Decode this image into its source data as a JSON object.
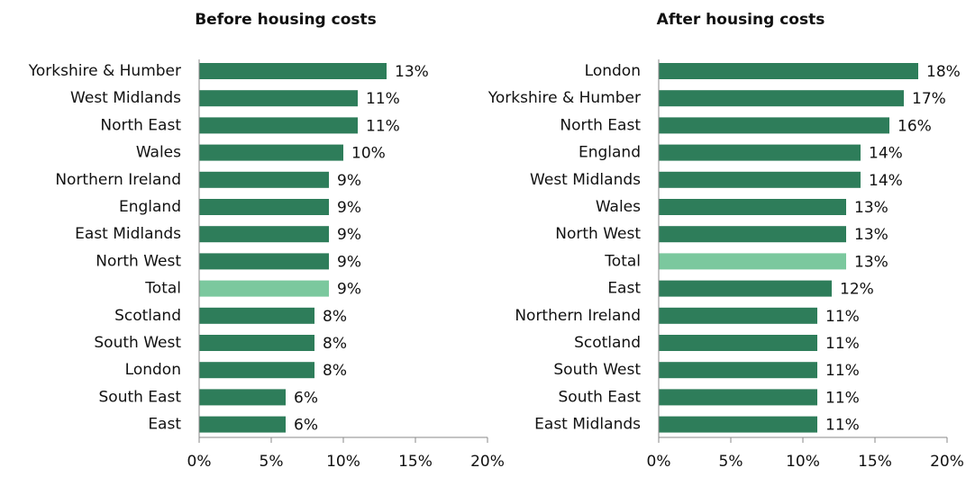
{
  "chart_data": [
    {
      "type": "bar",
      "orientation": "horizontal",
      "title": "Before housing costs",
      "categories": [
        "Yorkshire & Humber",
        "West Midlands",
        "North East",
        "Wales",
        "Northern Ireland",
        "England",
        "East Midlands",
        "North West",
        "Total",
        "Scotland",
        "South West",
        "London",
        "South East",
        "East"
      ],
      "values": [
        13,
        11,
        11,
        10,
        9,
        9,
        9,
        9,
        9,
        8,
        8,
        8,
        6,
        6
      ],
      "value_labels": [
        "13%",
        "11%",
        "11%",
        "10%",
        "9%",
        "9%",
        "9%",
        "9%",
        "9%",
        "8%",
        "8%",
        "8%",
        "6%",
        "6%"
      ],
      "colors": [
        "#2e7d5a",
        "#2e7d5a",
        "#2e7d5a",
        "#2e7d5a",
        "#2e7d5a",
        "#2e7d5a",
        "#2e7d5a",
        "#2e7d5a",
        "#7bc89e",
        "#2e7d5a",
        "#2e7d5a",
        "#2e7d5a",
        "#2e7d5a",
        "#2e7d5a"
      ],
      "xlim": [
        0,
        20
      ],
      "xticks": [
        {
          "value": 0,
          "label": "0%"
        },
        {
          "value": 5,
          "label": "5%"
        },
        {
          "value": 10,
          "label": "10%"
        },
        {
          "value": 15,
          "label": "15%"
        },
        {
          "value": 20,
          "label": "20%"
        }
      ]
    },
    {
      "type": "bar",
      "orientation": "horizontal",
      "title": "After housing costs",
      "categories": [
        "London",
        "Yorkshire & Humber",
        "North East",
        "England",
        "West Midlands",
        "Wales",
        "North West",
        "Total",
        "East",
        "Northern Ireland",
        "Scotland",
        "South West",
        "South East",
        "East Midlands"
      ],
      "values": [
        18,
        17,
        16,
        14,
        14,
        13,
        13,
        13,
        12,
        11,
        11,
        11,
        11,
        11
      ],
      "value_labels": [
        "18%",
        "17%",
        "16%",
        "14%",
        "14%",
        "13%",
        "13%",
        "13%",
        "12%",
        "11%",
        "11%",
        "11%",
        "11%",
        "11%"
      ],
      "colors": [
        "#2e7d5a",
        "#2e7d5a",
        "#2e7d5a",
        "#2e7d5a",
        "#2e7d5a",
        "#2e7d5a",
        "#2e7d5a",
        "#7bc89e",
        "#2e7d5a",
        "#2e7d5a",
        "#2e7d5a",
        "#2e7d5a",
        "#2e7d5a",
        "#2e7d5a"
      ],
      "xlim": [
        0,
        20
      ],
      "xticks": [
        {
          "value": 0,
          "label": "0%"
        },
        {
          "value": 5,
          "label": "5%"
        },
        {
          "value": 10,
          "label": "10%"
        },
        {
          "value": 15,
          "label": "15%"
        },
        {
          "value": 20,
          "label": "20%"
        }
      ]
    }
  ]
}
